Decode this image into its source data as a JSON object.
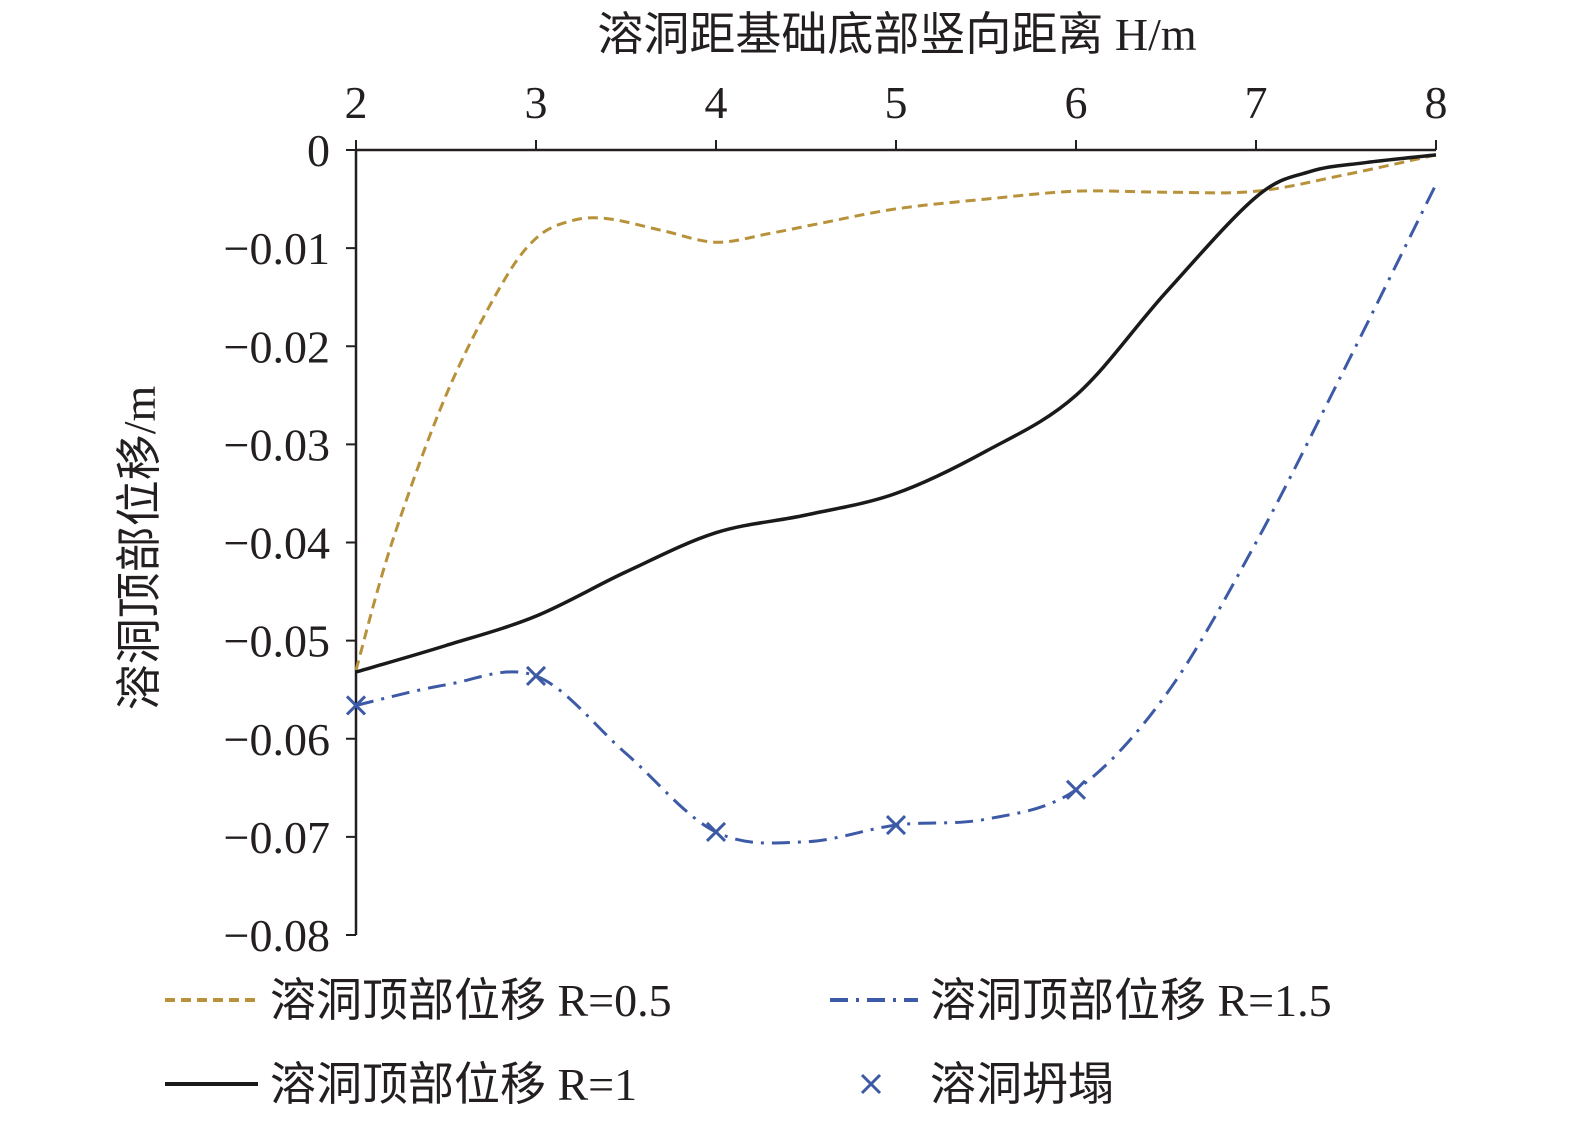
{
  "chart_data": {
    "type": "line",
    "xlabel": "溶洞距基础底部竖向距离 H/m",
    "ylabel": "溶洞顶部位移/m",
    "x_ticks": [
      "2",
      "3",
      "4",
      "5",
      "6",
      "7",
      "8"
    ],
    "y_ticks": [
      "0",
      "−0.01",
      "−0.02",
      "−0.03",
      "−0.04",
      "−0.05",
      "−0.06",
      "−0.07",
      "−0.08"
    ],
    "xlim": [
      2,
      8
    ],
    "ylim": [
      -0.08,
      0
    ],
    "x_axis_position": "top",
    "grid": false,
    "legend_position": "bottom",
    "series": [
      {
        "name": "溶洞顶部位移 R=0.5",
        "color": "#b8923a",
        "line_style": "dashed",
        "x": [
          2,
          2.2,
          2.5,
          2.8,
          3.0,
          3.2,
          3.4,
          3.7,
          4.0,
          4.3,
          4.6,
          5.0,
          5.5,
          6.0,
          6.5,
          7.0,
          7.5,
          8.0
        ],
        "y": [
          -0.053,
          -0.04,
          -0.025,
          -0.014,
          -0.009,
          -0.0072,
          -0.007,
          -0.0082,
          -0.0094,
          -0.0085,
          -0.0074,
          -0.006,
          -0.005,
          -0.0042,
          -0.0043,
          -0.0042,
          -0.0025,
          -0.0005
        ]
      },
      {
        "name": "溶洞顶部位移 R=1.5",
        "color": "#3d5aa6",
        "line_style": "dashdot",
        "x": [
          2,
          2.5,
          3.0,
          3.5,
          4.0,
          4.5,
          5.0,
          5.5,
          6.0,
          6.5,
          7.0,
          7.5,
          8.0
        ],
        "y": [
          -0.0566,
          -0.0545,
          -0.0536,
          -0.0615,
          -0.0695,
          -0.0705,
          -0.0688,
          -0.0682,
          -0.0652,
          -0.0555,
          -0.04,
          -0.022,
          -0.0035
        ]
      },
      {
        "name": "溶洞顶部位移 R=1",
        "color": "#1a1a1a",
        "line_style": "solid",
        "x": [
          2,
          2.5,
          3.0,
          3.5,
          4.0,
          4.5,
          5.0,
          5.5,
          6.0,
          6.5,
          7.0,
          7.3,
          7.6,
          8.0
        ],
        "y": [
          -0.0532,
          -0.0505,
          -0.0475,
          -0.043,
          -0.039,
          -0.0372,
          -0.035,
          -0.0307,
          -0.025,
          -0.0145,
          -0.0048,
          -0.0022,
          -0.0013,
          -0.0005
        ]
      }
    ],
    "markers": {
      "name": "溶洞坍塌",
      "color": "#3d5aa6",
      "symbol": "x",
      "x": [
        2,
        3,
        4,
        5,
        6
      ],
      "y": [
        -0.0566,
        -0.0536,
        -0.0695,
        -0.0688,
        -0.0652
      ]
    }
  }
}
